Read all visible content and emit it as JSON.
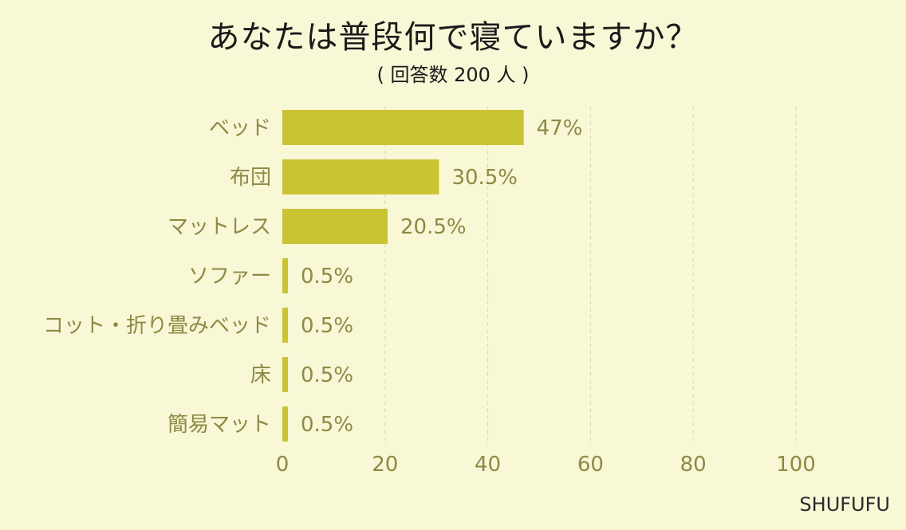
{
  "chart_data": {
    "type": "bar",
    "orientation": "horizontal",
    "title": "あなたは普段何で寝ていますか？",
    "subtitle": "( 回答数 200 人 )",
    "categories": [
      "ベッド",
      "布団",
      "マットレス",
      "ソファー",
      "コット・折り畳みベッド",
      "床",
      "簡易マット"
    ],
    "values": [
      47,
      30.5,
      20.5,
      0.5,
      0.5,
      0.5,
      0.5
    ],
    "value_labels": [
      "47%",
      "30.5%",
      "20.5%",
      "0.5%",
      "0.5%",
      "0.5%",
      "0.5%"
    ],
    "xlabel": "",
    "ylabel": "",
    "xlim": [
      0,
      100
    ],
    "xticks": [
      0,
      20,
      40,
      60,
      80,
      100
    ],
    "grid": true,
    "bar_color": "#c9c434"
  },
  "source": "SHUFUFU"
}
